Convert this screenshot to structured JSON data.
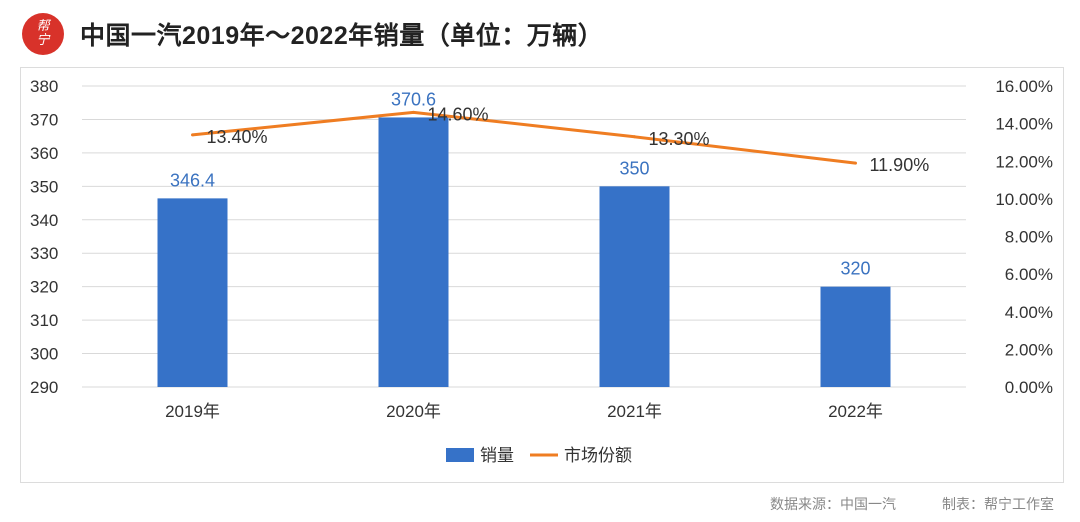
{
  "header": {
    "logo_text_1": "帮",
    "logo_text_2": "宁",
    "title": "中国一汽2019年～2022年销量（单位：万辆）"
  },
  "colors": {
    "bar": "#3672c8",
    "line": "#ef7d22",
    "bar_label": "#3b73c0"
  },
  "chart_data": {
    "type": "bar",
    "categories": [
      "2019年",
      "2020年",
      "2021年",
      "2022年"
    ],
    "series": [
      {
        "name": "销量",
        "type": "bar",
        "axis": "left",
        "values": [
          346.4,
          370.6,
          350,
          320
        ],
        "labels": [
          "346.4",
          "370.6",
          "350",
          "320"
        ]
      },
      {
        "name": "市场份额",
        "type": "line",
        "axis": "right",
        "values": [
          13.4,
          14.6,
          13.3,
          11.9
        ],
        "labels": [
          "13.40%",
          "14.60%",
          "13.30%",
          "11.90%"
        ]
      }
    ],
    "y_left": {
      "min": 290,
      "max": 380,
      "ticks": [
        "380",
        "370",
        "360",
        "350",
        "340",
        "330",
        "320",
        "310",
        "300",
        "290"
      ]
    },
    "y_right": {
      "min": 0,
      "max": 16,
      "ticks": [
        "16.00%",
        "14.00%",
        "12.00%",
        "10.00%",
        "8.00%",
        "6.00%",
        "4.00%",
        "2.00%",
        "0.00%"
      ]
    },
    "grid": true,
    "legend": "bottom-center"
  },
  "footer": {
    "source": "数据来源：中国一汽",
    "maker": "制表：帮宁工作室"
  }
}
